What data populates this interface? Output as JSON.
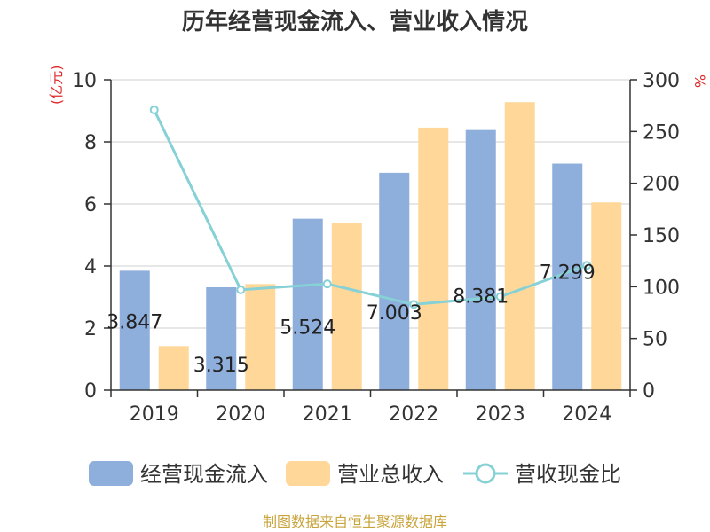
{
  "chart_data": {
    "type": "bar",
    "title": "历年经营现金流入、营业收入情况",
    "categories": [
      "2019",
      "2020",
      "2021",
      "2022",
      "2023",
      "2024"
    ],
    "series": [
      {
        "name": "经营现金流入",
        "type": "bar",
        "axis": "left",
        "color": "#8eaedb",
        "values": [
          3.847,
          3.315,
          5.524,
          7.003,
          8.381,
          7.299
        ],
        "labels": [
          "3.847",
          "3.315",
          "5.524",
          "7.003",
          "8.381",
          "7.299"
        ]
      },
      {
        "name": "营业总收入",
        "type": "bar",
        "axis": "left",
        "color": "#ffd899",
        "values": [
          1.42,
          3.42,
          5.38,
          8.46,
          9.28,
          6.05
        ]
      },
      {
        "name": "营收现金比",
        "type": "line",
        "axis": "right",
        "color": "#86d1d6",
        "values": [
          270.9,
          97.0,
          102.7,
          82.8,
          90.3,
          120.6
        ]
      }
    ],
    "y_left": {
      "unit": "(亿元)",
      "min": 0,
      "max": 10,
      "ticks": [
        0,
        2,
        4,
        6,
        8,
        10
      ]
    },
    "y_right": {
      "unit": "%",
      "min": 0,
      "max": 300,
      "ticks": [
        0,
        50,
        100,
        150,
        200,
        250,
        300
      ]
    },
    "grid": true,
    "legend_position": "bottom",
    "unit_color": "#e0292b"
  },
  "source": {
    "text": "制图数据来自恒生聚源数据库",
    "color": "#c9a43a"
  }
}
